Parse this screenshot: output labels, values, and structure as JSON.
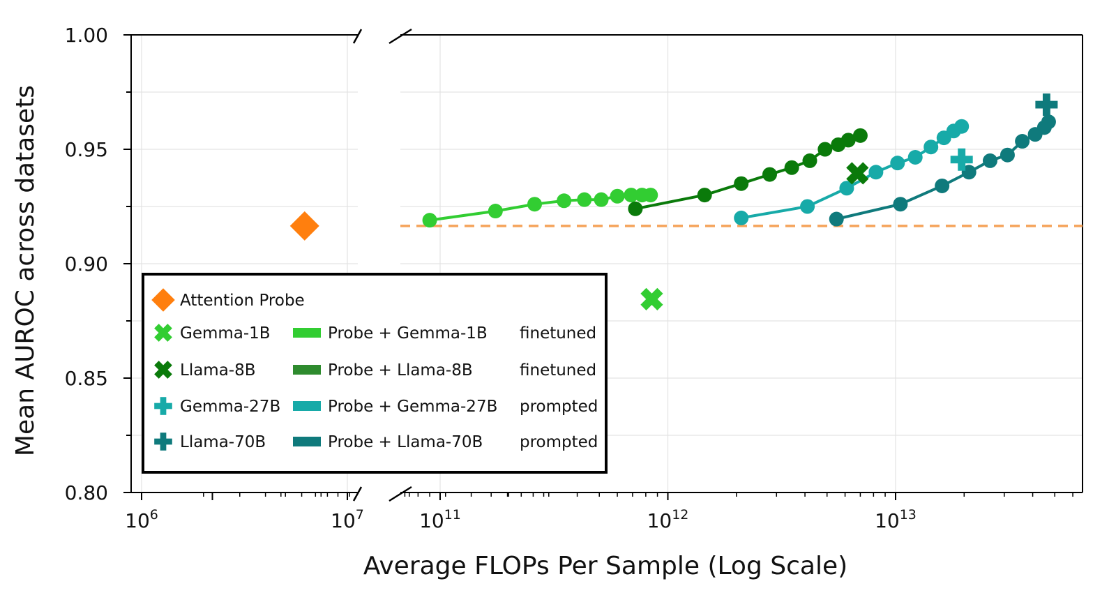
{
  "chart_data": {
    "type": "line",
    "title": "",
    "xlabel": "Average FLOPs Per Sample (Log Scale)",
    "ylabel": "Mean AUROC across datasets",
    "x_scale": "log",
    "x_axis_broken": true,
    "x_segments": [
      {
        "xlim": [
          1000000.0,
          10000000.0
        ],
        "ticks": [
          1000000.0,
          10000000.0
        ]
      },
      {
        "xlim": [
          100000000000.0,
          10000000000000.0
        ],
        "ticks": [
          100000000000.0,
          1000000000000.0,
          10000000000000.0
        ]
      }
    ],
    "x_tick_base": "10",
    "x_tick_exponents": [
      "6",
      "7",
      "11",
      "12",
      "13"
    ],
    "ylim": [
      0.8,
      1.0
    ],
    "y_ticks": [
      "0.80",
      "0.85",
      "0.90",
      "0.95",
      "1.00"
    ],
    "grid": true,
    "legend_position": "lower-left",
    "reference_line": {
      "y": 0.9165,
      "color": "#f5a35a",
      "style": "dashed"
    },
    "points": [
      {
        "name": "Attention Probe",
        "x": 6200000.0,
        "y": 0.9165,
        "marker": "diamond",
        "color": "#ff7f0e"
      },
      {
        "name": "Gemma-1B",
        "x": 850000000000.0,
        "y": 0.8845,
        "marker": "x",
        "color": "#32cd32"
      },
      {
        "name": "Llama-8B",
        "x": 6800000000000.0,
        "y": 0.9395,
        "marker": "x",
        "color": "#0a7a0a"
      },
      {
        "name": "Gemma-27B",
        "x": 19500000000000.0,
        "y": 0.9455,
        "marker": "plus",
        "color": "#17aaa8"
      },
      {
        "name": "Llama-70B",
        "x": 46000000000000.0,
        "y": 0.9695,
        "marker": "plus",
        "color": "#0f7a7c"
      }
    ],
    "series": [
      {
        "name": "Probe + Gemma-1B",
        "color": "#32cd32",
        "x": [
          90000000000.0,
          175000000000.0,
          260000000000.0,
          350000000000.0,
          430000000000.0,
          510000000000.0,
          600000000000.0,
          690000000000.0,
          770000000000.0,
          840000000000.0
        ],
        "y": [
          0.919,
          0.923,
          0.926,
          0.9275,
          0.928,
          0.928,
          0.9295,
          0.93,
          0.93,
          0.93
        ]
      },
      {
        "name": "Probe + Llama-8B",
        "color": "#0a7a0a",
        "x": [
          720000000000.0,
          1450000000000.0,
          2100000000000.0,
          2800000000000.0,
          3500000000000.0,
          4200000000000.0,
          4900000000000.0,
          5600000000000.0,
          6200000000000.0,
          7000000000000.0
        ],
        "y": [
          0.924,
          0.93,
          0.935,
          0.939,
          0.942,
          0.945,
          0.95,
          0.952,
          0.954,
          0.956
        ]
      },
      {
        "name": "Probe + Gemma-27B",
        "color": "#17aaa8",
        "x": [
          2100000000000.0,
          4100000000000.0,
          6100000000000.0,
          8200000000000.0,
          10200000000000.0,
          12200000000000.0,
          14300000000000.0,
          16300000000000.0,
          18000000000000.0,
          19500000000000.0
        ],
        "y": [
          0.92,
          0.925,
          0.933,
          0.94,
          0.944,
          0.9465,
          0.951,
          0.955,
          0.958,
          0.96
        ]
      },
      {
        "name": "Probe + Llama-70B",
        "color": "#0f7a7c",
        "x": [
          5500000000000.0,
          10500000000000.0,
          16000000000000.0,
          21000000000000.0,
          26000000000000.0,
          31000000000000.0,
          36000000000000.0,
          41000000000000.0,
          45000000000000.0,
          47000000000000.0
        ],
        "y": [
          0.9195,
          0.926,
          0.934,
          0.94,
          0.945,
          0.9475,
          0.9535,
          0.9565,
          0.9595,
          0.962
        ]
      }
    ],
    "legend": {
      "col1": [
        {
          "label": "Attention Probe",
          "marker": "diamond",
          "color": "#ff7f0e"
        },
        {
          "label": "Gemma-1B",
          "marker": "x",
          "color": "#32cd32"
        },
        {
          "label": "Llama-8B",
          "marker": "x",
          "color": "#0a7a0a"
        },
        {
          "label": "Gemma-27B",
          "marker": "plus",
          "color": "#17aaa8"
        },
        {
          "label": "Llama-70B",
          "marker": "plus",
          "color": "#0f7a7c"
        }
      ],
      "col2": [
        {
          "label": "Probe + Gemma-1B",
          "color": "#32cd32"
        },
        {
          "label": "Probe + Llama-8B",
          "color": "#2e8b2e"
        },
        {
          "label": "Probe + Gemma-27B",
          "color": "#17aaa8"
        },
        {
          "label": "Probe + Llama-70B",
          "color": "#0f7a7c"
        }
      ],
      "col3": [
        "finetuned",
        "finetuned",
        "prompted",
        "prompted"
      ]
    }
  }
}
